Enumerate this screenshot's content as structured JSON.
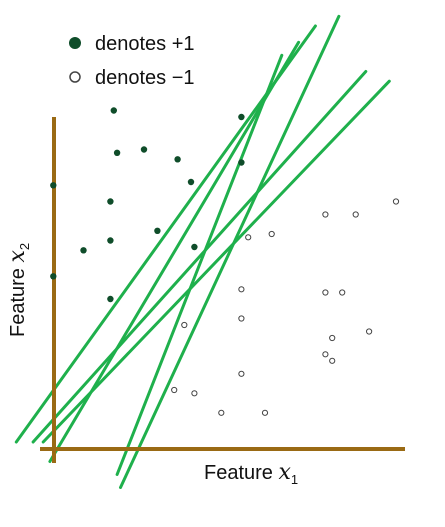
{
  "chart_data": {
    "type": "scatter",
    "title": "",
    "xlabel_text": "Feature",
    "xlabel_var": "x",
    "xlabel_sub": "1",
    "ylabel_text": "Feature",
    "ylabel_var": "x",
    "ylabel_sub": "2",
    "xlim": [
      0,
      100
    ],
    "ylim": [
      0,
      100
    ],
    "grid": false,
    "legend_position": "top-left",
    "legend": [
      {
        "label": "denotes +1",
        "marker": "filled-circle",
        "color": "#0f4d2a"
      },
      {
        "label": "denotes −1",
        "marker": "open-circle",
        "color": "#444444"
      }
    ],
    "axis_color": "#9a6a14",
    "line_color": "#1fb04c",
    "series": [
      {
        "name": "+1",
        "color": "#0f4d2a",
        "points": [
          [
            -2,
            79
          ],
          [
            -2,
            51
          ],
          [
            7,
            59
          ],
          [
            15,
            62
          ],
          [
            15,
            74
          ],
          [
            15,
            44
          ],
          [
            16,
            102
          ],
          [
            17,
            89
          ],
          [
            25,
            90
          ],
          [
            29,
            65
          ],
          [
            35,
            87
          ],
          [
            40,
            60
          ],
          [
            39,
            80
          ],
          [
            54,
            100
          ],
          [
            54,
            86
          ]
        ]
      },
      {
        "name": "-1",
        "color": "#444444",
        "points": [
          [
            56,
            63
          ],
          [
            63,
            64
          ],
          [
            54,
            47
          ],
          [
            54,
            38
          ],
          [
            79,
            70
          ],
          [
            88,
            70
          ],
          [
            100,
            74
          ],
          [
            84,
            46
          ],
          [
            79,
            46
          ],
          [
            81,
            32
          ],
          [
            79,
            27
          ],
          [
            81,
            25
          ],
          [
            92,
            34
          ],
          [
            37,
            36
          ],
          [
            54,
            21
          ],
          [
            34,
            16
          ],
          [
            40,
            15
          ],
          [
            48,
            9
          ],
          [
            61,
            9
          ]
        ]
      }
    ],
    "separating_lines": [
      [
        [
          -13,
          0
        ],
        [
          76,
          128
        ]
      ],
      [
        [
          -8,
          0
        ],
        [
          91,
          114
        ]
      ],
      [
        [
          -5,
          0
        ],
        [
          98,
          111
        ]
      ],
      [
        [
          -3,
          -6
        ],
        [
          71,
          123
        ]
      ],
      [
        [
          17,
          -10
        ],
        [
          66,
          119
        ]
      ],
      [
        [
          18,
          -14
        ],
        [
          83,
          131
        ]
      ]
    ]
  }
}
